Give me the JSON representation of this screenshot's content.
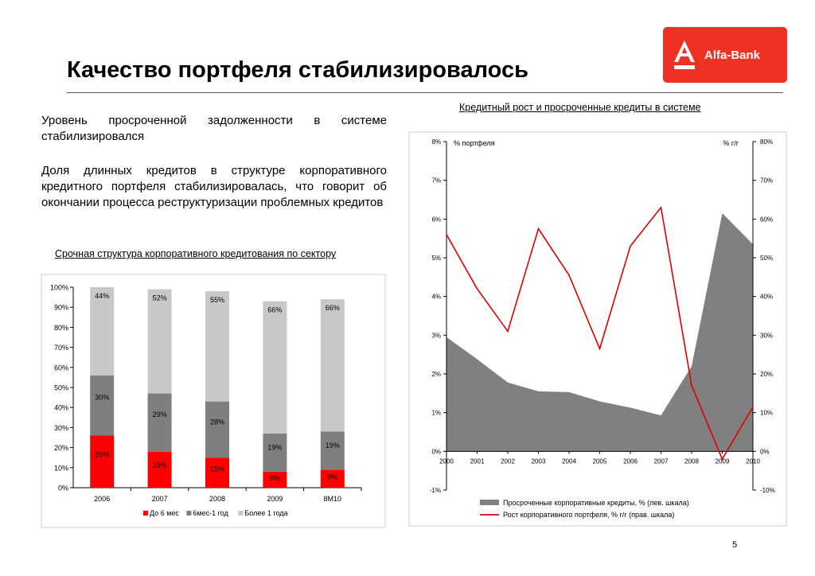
{
  "page": {
    "title": "Качество портфеля стабилизировалось",
    "logo_text": "Alfa-Bank",
    "paragraph1": "Уровень просроченной задолженности в системе стабилизировался",
    "paragraph2": "Доля длинных кредитов в структуре корпоративного кредитного портфеля стабилизировалась, что говорит об окончании процесса реструктуризации проблемных кредитов",
    "page_number": "5"
  },
  "colors": {
    "brand_red": "#ef3124",
    "short": "#ff0000",
    "mid": "#7f7f7f",
    "long": "#c8c8c8",
    "area": "#808080",
    "line": "#e00000"
  },
  "chart_data": [
    {
      "type": "bar",
      "stacked": true,
      "title": "Срочная структура корпоративного кредитования по сектору",
      "categories": [
        "2006",
        "2007",
        "2008",
        "2009",
        "8М10"
      ],
      "series": [
        {
          "name": "До 6 мес",
          "values": [
            26,
            18,
            15,
            8,
            9
          ]
        },
        {
          "name": "6мес-1 год",
          "values": [
            30,
            29,
            28,
            19,
            19
          ]
        },
        {
          "name": "Более 1 года",
          "values": [
            44,
            52,
            55,
            66,
            66
          ]
        }
      ],
      "data_labels": [
        [
          "26%",
          "18%",
          "15%",
          "8%",
          "9%"
        ],
        [
          "30%",
          "29%",
          "28%",
          "19%",
          "19%"
        ],
        [
          "44%",
          "52%",
          "55%",
          "66%",
          "66%"
        ]
      ],
      "y_ticks": [
        "0%",
        "10%",
        "20%",
        "30%",
        "40%",
        "50%",
        "60%",
        "70%",
        "80%",
        "90%",
        "100%"
      ],
      "ylim": [
        0,
        100
      ],
      "legend_position": "bottom"
    },
    {
      "type": "area",
      "title": "Кредитный рост и просроченные кредиты в системе",
      "x": [
        "2000",
        "2001",
        "2002",
        "2003",
        "2004",
        "2005",
        "2006",
        "2007",
        "2008",
        "2009",
        "2010"
      ],
      "left_axis_label": "% портфеля",
      "right_axis_label": "% г/г",
      "left_ticks": [
        "-1%",
        "0%",
        "1%",
        "2%",
        "3%",
        "4%",
        "5%",
        "6%",
        "7%",
        "8%"
      ],
      "right_ticks": [
        "-10%",
        "0%",
        "10%",
        "20%",
        "30%",
        "40%",
        "50%",
        "60%",
        "70%",
        "80%"
      ],
      "left_ylim": [
        -1,
        8
      ],
      "right_ylim": [
        -10,
        80
      ],
      "series": [
        {
          "name": "Просроченные корпоративные кредиты, % (лев. шкала)",
          "type": "area",
          "axis": "left",
          "values": [
            2.95,
            2.38,
            1.78,
            1.55,
            1.53,
            1.29,
            1.13,
            0.93,
            2.2,
            6.15,
            5.35
          ]
        },
        {
          "name": "Рост корпоративного портфеля, % г/г (прав. шкала)",
          "type": "line",
          "axis": "right",
          "values": [
            56,
            42,
            31,
            57.5,
            45.5,
            26.5,
            53,
            63,
            17,
            -2,
            11.5
          ]
        }
      ],
      "legend_position": "bottom"
    }
  ]
}
